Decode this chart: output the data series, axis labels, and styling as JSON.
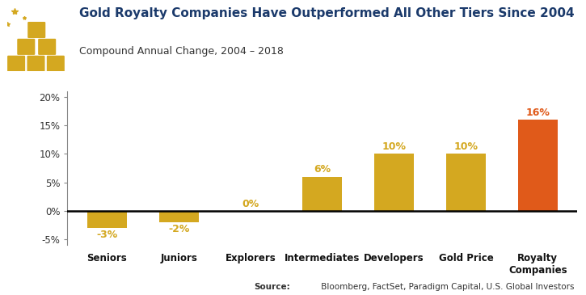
{
  "title": "Gold Royalty Companies Have Outperformed All Other Tiers Since 2004",
  "subtitle": "Compound Annual Change, 2004 – 2018",
  "categories": [
    "Seniors",
    "Juniors",
    "Explorers",
    "Intermediates",
    "Developers",
    "Gold Price",
    "Royalty\nCompanies"
  ],
  "values": [
    -3,
    -2,
    0,
    6,
    10,
    10,
    16
  ],
  "bar_colors": [
    "#D4A820",
    "#D4A820",
    "#D4A820",
    "#D4A820",
    "#D4A820",
    "#D4A820",
    "#E05A1A"
  ],
  "label_colors": [
    "#D4A820",
    "#D4A820",
    "#D4A820",
    "#D4A820",
    "#D4A820",
    "#D4A820",
    "#E05A1A"
  ],
  "title_color": "#1B3A6B",
  "subtitle_color": "#333333",
  "source_bold": "Source:",
  "source_rest": " Bloomberg, FactSet, Paradigm Capital, U.S. Global Investors",
  "ylim": [
    -6,
    21
  ],
  "yticks": [
    -5,
    0,
    5,
    10,
    15,
    20
  ],
  "ytick_labels": [
    "-5%",
    "0%",
    "5%",
    "10%",
    "15%",
    "20%"
  ],
  "background_color": "#FFFFFF",
  "icon_gold_color": "#D4A820",
  "icon_star_color": "#D4A820",
  "spine_color": "#888888"
}
